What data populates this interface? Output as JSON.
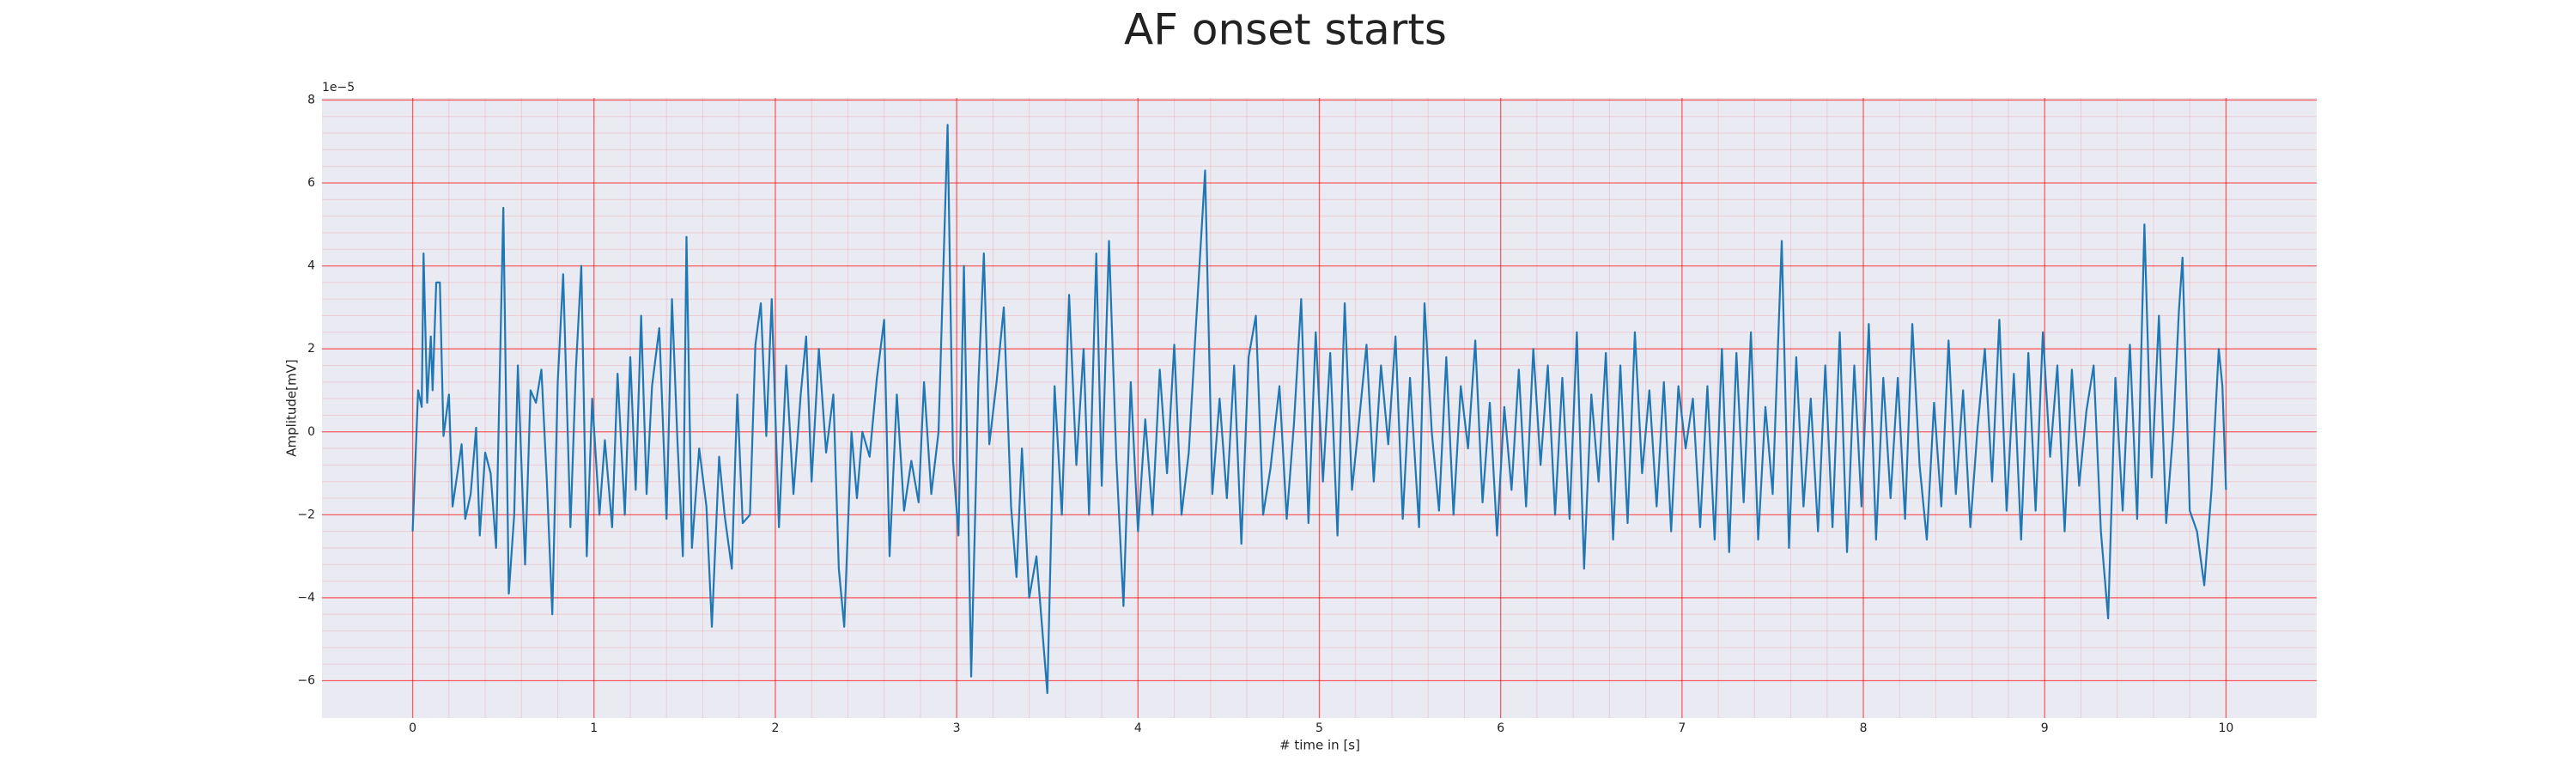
{
  "chart_data": {
    "type": "line",
    "title": "AF onset starts",
    "xlabel": "# time in [s]",
    "ylabel": "Amplitude[mV]",
    "y_offset": "1e−5",
    "xlim": [
      -0.5,
      10.5
    ],
    "ylim": [
      -6.9,
      8.05
    ],
    "xticks": [
      0,
      1,
      2,
      3,
      4,
      5,
      6,
      7,
      8,
      9,
      10
    ],
    "yticks": [
      {
        "value": -6,
        "label": "−6"
      },
      {
        "value": -4,
        "label": "−4"
      },
      {
        "value": -2,
        "label": "−2"
      },
      0,
      2,
      4,
      6,
      8
    ],
    "grid": true,
    "minor_grid": true,
    "background": "#eaeaf2",
    "grid_color": "#ff0000",
    "x": [
      0.0,
      0.03,
      0.05,
      0.06,
      0.08,
      0.1,
      0.11,
      0.13,
      0.15,
      0.17,
      0.2,
      0.22,
      0.27,
      0.29,
      0.32,
      0.35,
      0.37,
      0.4,
      0.43,
      0.46,
      0.5,
      0.53,
      0.56,
      0.58,
      0.62,
      0.65,
      0.68,
      0.71,
      0.74,
      0.77,
      0.8,
      0.83,
      0.87,
      0.9,
      0.93,
      0.96,
      0.99,
      1.03,
      1.06,
      1.1,
      1.13,
      1.17,
      1.2,
      1.23,
      1.26,
      1.29,
      1.32,
      1.36,
      1.4,
      1.43,
      1.46,
      1.49,
      1.51,
      1.54,
      1.58,
      1.62,
      1.65,
      1.69,
      1.72,
      1.76,
      1.79,
      1.82,
      1.86,
      1.89,
      1.92,
      1.95,
      1.98,
      2.02,
      2.06,
      2.1,
      2.14,
      2.17,
      2.2,
      2.24,
      2.28,
      2.32,
      2.35,
      2.38,
      2.42,
      2.45,
      2.48,
      2.52,
      2.56,
      2.6,
      2.63,
      2.67,
      2.71,
      2.75,
      2.79,
      2.82,
      2.86,
      2.9,
      2.95,
      2.98,
      3.01,
      3.04,
      3.08,
      3.12,
      3.15,
      3.18,
      3.22,
      3.26,
      3.3,
      3.33,
      3.36,
      3.4,
      3.44,
      3.5,
      3.54,
      3.58,
      3.62,
      3.66,
      3.7,
      3.73,
      3.77,
      3.8,
      3.84,
      3.88,
      3.92,
      3.96,
      4.0,
      4.04,
      4.08,
      4.12,
      4.16,
      4.2,
      4.24,
      4.28,
      4.32,
      4.37,
      4.41,
      4.45,
      4.49,
      4.53,
      4.57,
      4.61,
      4.65,
      4.69,
      4.73,
      4.78,
      4.82,
      4.86,
      4.9,
      4.94,
      4.98,
      5.02,
      5.06,
      5.1,
      5.14,
      5.18,
      5.22,
      5.26,
      5.3,
      5.34,
      5.38,
      5.42,
      5.46,
      5.5,
      5.55,
      5.58,
      5.62,
      5.66,
      5.7,
      5.74,
      5.78,
      5.82,
      5.86,
      5.9,
      5.94,
      5.98,
      6.02,
      6.06,
      6.1,
      6.14,
      6.18,
      6.22,
      6.26,
      6.3,
      6.34,
      6.38,
      6.42,
      6.46,
      6.5,
      6.54,
      6.58,
      6.62,
      6.66,
      6.7,
      6.74,
      6.78,
      6.82,
      6.86,
      6.9,
      6.94,
      6.98,
      7.02,
      7.06,
      7.1,
      7.14,
      7.18,
      7.22,
      7.26,
      7.3,
      7.34,
      7.38,
      7.42,
      7.46,
      7.5,
      7.55,
      7.59,
      7.63,
      7.67,
      7.71,
      7.75,
      7.79,
      7.83,
      7.87,
      7.91,
      7.95,
      7.99,
      8.03,
      8.07,
      8.11,
      8.15,
      8.19,
      8.23,
      8.27,
      8.31,
      8.35,
      8.39,
      8.43,
      8.47,
      8.51,
      8.55,
      8.59,
      8.63,
      8.67,
      8.71,
      8.75,
      8.79,
      8.83,
      8.87,
      8.91,
      8.95,
      8.99,
      9.03,
      9.07,
      9.11,
      9.15,
      9.19,
      9.23,
      9.27,
      9.31,
      9.35,
      9.39,
      9.43,
      9.47,
      9.51,
      9.55,
      9.59,
      9.63,
      9.67,
      9.71,
      9.74,
      9.76,
      9.8,
      9.84,
      9.88,
      9.92,
      9.96,
      9.98,
      10.0
    ],
    "series": [
      {
        "color": "#1f77b4",
        "values": [
          -2.4,
          1.0,
          0.6,
          4.3,
          0.7,
          2.3,
          1.0,
          3.6,
          3.6,
          -0.1,
          0.9,
          -1.8,
          -0.3,
          -2.1,
          -1.5,
          0.1,
          -2.5,
          -0.5,
          -1.0,
          -2.8,
          5.4,
          -3.9,
          -2.0,
          1.6,
          -3.2,
          1.0,
          0.7,
          1.5,
          -1.2,
          -4.4,
          1.2,
          3.8,
          -2.3,
          1.5,
          4.0,
          -3.0,
          0.8,
          -2.0,
          -0.2,
          -2.3,
          1.4,
          -2.0,
          1.8,
          -1.4,
          2.8,
          -1.5,
          1.1,
          2.5,
          -2.1,
          3.2,
          -0.2,
          -3.0,
          4.7,
          -2.8,
          -0.4,
          -1.8,
          -4.7,
          -0.6,
          -2.0,
          -3.3,
          0.9,
          -2.2,
          -2.0,
          2.1,
          3.1,
          -0.1,
          3.2,
          -2.3,
          1.6,
          -1.5,
          0.9,
          2.3,
          -1.2,
          2.0,
          -0.5,
          0.9,
          -3.3,
          -4.7,
          0.0,
          -1.6,
          0.0,
          -0.6,
          1.3,
          2.7,
          -3.0,
          0.9,
          -1.9,
          -0.7,
          -1.7,
          1.2,
          -1.5,
          0.0,
          7.4,
          -0.7,
          -2.5,
          4.0,
          -5.9,
          1.2,
          4.3,
          -0.3,
          1.2,
          3.0,
          -1.8,
          -3.5,
          -0.4,
          -4.0,
          -3.0,
          -6.3,
          1.1,
          -2.0,
          3.3,
          -0.8,
          2.0,
          -2.0,
          4.3,
          -1.3,
          4.6,
          -0.6,
          -4.2,
          1.2,
          -2.4,
          0.3,
          -2.0,
          1.5,
          -1.0,
          2.1,
          -2.0,
          -0.5,
          2.6,
          6.3,
          -1.5,
          0.8,
          -1.6,
          1.6,
          -2.7,
          1.8,
          2.8,
          -2.0,
          -0.9,
          1.1,
          -2.1,
          0.2,
          3.2,
          -2.2,
          2.4,
          -1.2,
          1.9,
          -2.5,
          3.1,
          -1.4,
          0.3,
          2.1,
          -1.2,
          1.6,
          -0.3,
          2.3,
          -2.1,
          1.3,
          -2.3,
          3.1,
          0.0,
          -1.9,
          1.8,
          -2.0,
          1.1,
          -0.4,
          2.2,
          -1.7,
          0.7,
          -2.5,
          0.6,
          -1.4,
          1.5,
          -1.8,
          2.0,
          -0.8,
          1.6,
          -2.0,
          1.3,
          -2.1,
          2.4,
          -3.3,
          0.9,
          -1.2,
          1.9,
          -2.6,
          1.6,
          -2.2,
          2.4,
          -1.0,
          1.0,
          -1.8,
          1.2,
          -2.4,
          1.1,
          -0.4,
          0.8,
          -2.3,
          1.1,
          -2.6,
          2.0,
          -2.9,
          1.9,
          -1.7,
          2.4,
          -2.6,
          0.6,
          -1.5,
          4.6,
          -2.8,
          1.8,
          -1.8,
          0.8,
          -2.4,
          1.6,
          -2.3,
          2.4,
          -2.9,
          1.6,
          -1.8,
          2.6,
          -2.6,
          1.3,
          -1.6,
          1.3,
          -2.1,
          2.6,
          -0.8,
          -2.6,
          0.7,
          -1.8,
          2.2,
          -1.5,
          1.0,
          -2.3,
          0.1,
          2.0,
          -1.2,
          2.7,
          -1.9,
          1.4,
          -2.6,
          1.9,
          -1.9,
          2.4,
          -0.6,
          1.6,
          -2.4,
          1.5,
          -1.3,
          0.5,
          1.6,
          -2.4,
          -4.5,
          1.3,
          -1.9,
          2.1,
          -2.1,
          5.0,
          -1.1,
          2.8,
          -2.2,
          0.1,
          2.9,
          4.2,
          -1.9,
          -2.4,
          -3.7,
          -1.4,
          2.0,
          1.1,
          -1.4
        ]
      }
    ]
  }
}
